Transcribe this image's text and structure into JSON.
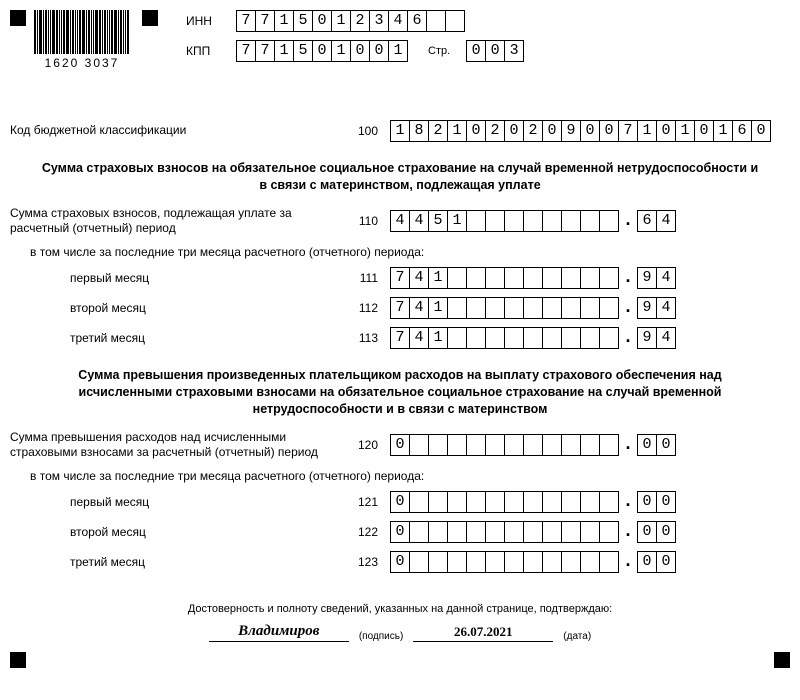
{
  "header": {
    "barcode_text": "1620 3037",
    "inn_label": "ИНН",
    "inn": [
      "7",
      "7",
      "1",
      "5",
      "0",
      "1",
      "2",
      "3",
      "4",
      "6",
      "",
      ""
    ],
    "kpp_label": "КПП",
    "kpp": [
      "7",
      "7",
      "1",
      "5",
      "0",
      "1",
      "0",
      "0",
      "1"
    ],
    "page_label": "Стр.",
    "page": [
      "0",
      "0",
      "3"
    ]
  },
  "kbk": {
    "label": "Код бюджетной классификации",
    "code": "100",
    "value": [
      "1",
      "8",
      "2",
      "1",
      "0",
      "2",
      "0",
      "2",
      "0",
      "9",
      "0",
      "0",
      "7",
      "1",
      "0",
      "1",
      "0",
      "1",
      "6",
      "0"
    ]
  },
  "section1": {
    "title": "Сумма страховых взносов на обязательное социальное страхование на случай временной нетрудоспособности и в связи с материнством, подлежащая уплате",
    "total_label": "Сумма страховых взносов, подлежащая уплате за расчетный (отчетный) период",
    "subnote": "в том числе за последние три месяца расчетного (отчетного) периода:",
    "m1_label": "первый месяц",
    "m2_label": "второй месяц",
    "m3_label": "третий месяц",
    "rows": {
      "r110": {
        "code": "110",
        "int": [
          "4",
          "4",
          "5",
          "1",
          "",
          "",
          "",
          "",
          "",
          "",
          "",
          ""
        ],
        "frac": [
          "6",
          "4"
        ]
      },
      "r111": {
        "code": "111",
        "int": [
          "7",
          "4",
          "1",
          "",
          "",
          "",
          "",
          "",
          "",
          "",
          "",
          ""
        ],
        "frac": [
          "9",
          "4"
        ]
      },
      "r112": {
        "code": "112",
        "int": [
          "7",
          "4",
          "1",
          "",
          "",
          "",
          "",
          "",
          "",
          "",
          "",
          ""
        ],
        "frac": [
          "9",
          "4"
        ]
      },
      "r113": {
        "code": "113",
        "int": [
          "7",
          "4",
          "1",
          "",
          "",
          "",
          "",
          "",
          "",
          "",
          "",
          ""
        ],
        "frac": [
          "9",
          "4"
        ]
      }
    }
  },
  "section2": {
    "title": "Сумма превышения произведенных плательщиком расходов на выплату страхового обеспечения над исчисленными страховыми взносами на обязательное социальное страхование на случай временной нетрудоспособности и в связи с материнством",
    "total_label": "Сумма превышения расходов над исчисленными страховыми взносами за расчетный (отчетный) период",
    "subnote": "в том числе за последние три месяца расчетного (отчетного) периода:",
    "m1_label": "первый месяц",
    "m2_label": "второй месяц",
    "m3_label": "третий месяц",
    "rows": {
      "r120": {
        "code": "120",
        "int": [
          "0",
          "",
          "",
          "",
          "",
          "",
          "",
          "",
          "",
          "",
          "",
          ""
        ],
        "frac": [
          "0",
          "0"
        ]
      },
      "r121": {
        "code": "121",
        "int": [
          "0",
          "",
          "",
          "",
          "",
          "",
          "",
          "",
          "",
          "",
          "",
          ""
        ],
        "frac": [
          "0",
          "0"
        ]
      },
      "r122": {
        "code": "122",
        "int": [
          "0",
          "",
          "",
          "",
          "",
          "",
          "",
          "",
          "",
          "",
          "",
          ""
        ],
        "frac": [
          "0",
          "0"
        ]
      },
      "r123": {
        "code": "123",
        "int": [
          "0",
          "",
          "",
          "",
          "",
          "",
          "",
          "",
          "",
          "",
          "",
          ""
        ],
        "frac": [
          "0",
          "0"
        ]
      }
    }
  },
  "footer": {
    "confirm": "Достоверность и полноту сведений, указанных на данной странице, подтверждаю:",
    "signature": "Владимиров",
    "sig_caption": "(подпись)",
    "date": "26.07.2021",
    "date_caption": "(дата)"
  },
  "style": {
    "cell_border": "#000000",
    "text_color": "#000000",
    "bg": "#ffffff",
    "mono_font": "Courier New",
    "base_fontsize": 12
  }
}
